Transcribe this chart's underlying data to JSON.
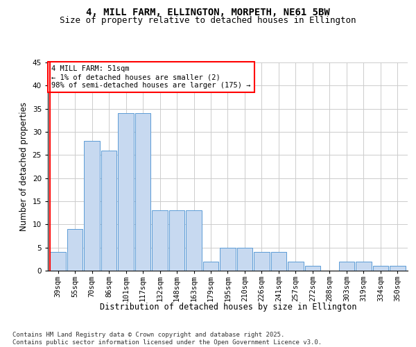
{
  "title_line1": "4, MILL FARM, ELLINGTON, MORPETH, NE61 5BW",
  "title_line2": "Size of property relative to detached houses in Ellington",
  "xlabel": "Distribution of detached houses by size in Ellington",
  "ylabel": "Number of detached properties",
  "categories": [
    "39sqm",
    "55sqm",
    "70sqm",
    "86sqm",
    "101sqm",
    "117sqm",
    "132sqm",
    "148sqm",
    "163sqm",
    "179sqm",
    "195sqm",
    "210sqm",
    "226sqm",
    "241sqm",
    "257sqm",
    "272sqm",
    "288sqm",
    "303sqm",
    "319sqm",
    "334sqm",
    "350sqm"
  ],
  "values": [
    4,
    9,
    28,
    26,
    34,
    34,
    13,
    13,
    13,
    2,
    5,
    5,
    4,
    4,
    2,
    1,
    0,
    2,
    2,
    1,
    1
  ],
  "bar_color": "#c7d9f0",
  "bar_edge_color": "#5b9bd5",
  "annotation_text": "4 MILL FARM: 51sqm\n← 1% of detached houses are smaller (2)\n98% of semi-detached houses are larger (175) →",
  "annotation_box_color": "white",
  "annotation_box_edge_color": "red",
  "vline_color": "red",
  "ylim": [
    0,
    45
  ],
  "yticks": [
    0,
    5,
    10,
    15,
    20,
    25,
    30,
    35,
    40,
    45
  ],
  "title_fontsize": 10,
  "subtitle_fontsize": 9,
  "xlabel_fontsize": 8.5,
  "ylabel_fontsize": 8.5,
  "tick_fontsize": 7.5,
  "annotation_fontsize": 7.5,
  "footer_text": "Contains HM Land Registry data © Crown copyright and database right 2025.\nContains public sector information licensed under the Open Government Licence v3.0.",
  "footer_fontsize": 6.5,
  "background_color": "#ffffff",
  "grid_color": "#cccccc"
}
